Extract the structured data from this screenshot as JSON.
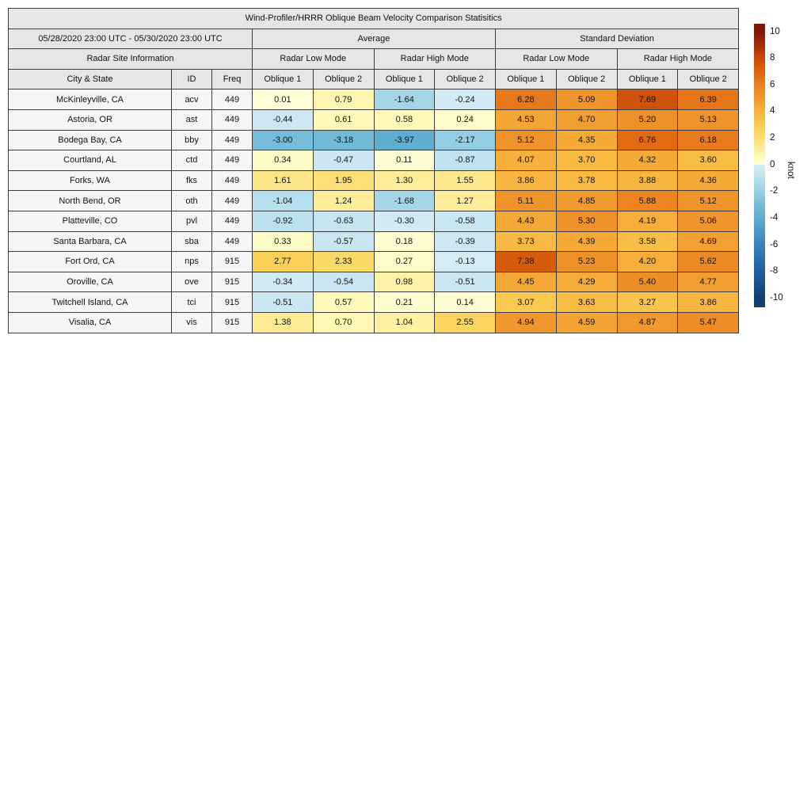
{
  "title": "Wind-Profiler/HRRR Oblique Beam Velocity Comparison Statisitics",
  "header": {
    "date_range": "05/28/2020 23:00 UTC - 05/30/2020 23:00 UTC",
    "group_average": "Average",
    "group_std": "Standard Deviation",
    "site_info": "Radar Site Information",
    "low_mode": "Radar Low Mode",
    "high_mode": "Radar High Mode",
    "col_city": "City & State",
    "col_id": "ID",
    "col_freq": "Freq",
    "oblique1": "Oblique 1",
    "oblique2": "Oblique 2"
  },
  "colorbar": {
    "label": "knot",
    "ticks": [
      10,
      8,
      6,
      4,
      2,
      0,
      -2,
      -4,
      -6,
      -8,
      -10
    ],
    "vmin": -10,
    "vmax": 10,
    "negative_stops": [
      [
        -10,
        "#153E6E"
      ],
      [
        -8,
        "#2060A6"
      ],
      [
        -6,
        "#3484BB"
      ],
      [
        -4,
        "#5EADCF"
      ],
      [
        -3,
        "#74BCD9"
      ],
      [
        -2,
        "#9AD1E5"
      ],
      [
        -1,
        "#B9E0EE"
      ],
      [
        -0.5,
        "#CBE7F2"
      ],
      [
        0,
        "#DAEEF6"
      ]
    ],
    "positive_stops": [
      [
        0,
        "#FFFED8"
      ],
      [
        0.5,
        "#FFFABE"
      ],
      [
        1,
        "#FEF2A6"
      ],
      [
        1.5,
        "#FDE88F"
      ],
      [
        2,
        "#FCDE74"
      ],
      [
        2.5,
        "#FBD660"
      ],
      [
        3,
        "#FBCB52"
      ],
      [
        3.5,
        "#F9C047"
      ],
      [
        4,
        "#F7B23D"
      ],
      [
        4.5,
        "#F4A634"
      ],
      [
        5,
        "#F0952C"
      ],
      [
        5.5,
        "#EE8C25"
      ],
      [
        6,
        "#EA8120"
      ],
      [
        6.5,
        "#E57117"
      ],
      [
        7,
        "#DE6410"
      ],
      [
        7.5,
        "#D4590B"
      ],
      [
        8,
        "#C84908"
      ],
      [
        9,
        "#A62D06"
      ],
      [
        10,
        "#7F1708"
      ]
    ]
  },
  "chart_data": {
    "type": "heatmap",
    "title": "Wind-Profiler/HRRR Oblique Beam Velocity Comparison Statisitics",
    "unit": "knot",
    "color_scale": {
      "min": -10,
      "max": 10,
      "label": "knot"
    },
    "column_groups": [
      "Average",
      "Standard Deviation"
    ],
    "columns": [
      "avg_low_oblique1",
      "avg_low_oblique2",
      "avg_high_oblique1",
      "avg_high_oblique2",
      "std_low_oblique1",
      "std_low_oblique2",
      "std_high_oblique1",
      "std_high_oblique2"
    ],
    "rows": [
      {
        "city": "McKinleyville, CA",
        "id": "acv",
        "freq": "449",
        "avg": [
          "0.01",
          "0.79",
          "-1.64",
          "-0.24"
        ],
        "std": [
          "6.28",
          "5.09",
          "7.69",
          "6.39"
        ]
      },
      {
        "city": "Astoria, OR",
        "id": "ast",
        "freq": "449",
        "avg": [
          "-0.44",
          "0.61",
          "0.58",
          "0.24"
        ],
        "std": [
          "4.53",
          "4.70",
          "5.20",
          "5.13"
        ]
      },
      {
        "city": "Bodega Bay, CA",
        "id": "bby",
        "freq": "449",
        "avg": [
          "-3.00",
          "-3.18",
          "-3.97",
          "-2.17"
        ],
        "std": [
          "5.12",
          "4.35",
          "6.76",
          "6.18"
        ]
      },
      {
        "city": "Courtland, AL",
        "id": "ctd",
        "freq": "449",
        "avg": [
          "0.34",
          "-0.47",
          "0.11",
          "-0.87"
        ],
        "std": [
          "4.07",
          "3.70",
          "4.32",
          "3.60"
        ]
      },
      {
        "city": "Forks, WA",
        "id": "fks",
        "freq": "449",
        "avg": [
          "1.61",
          "1.95",
          "1.30",
          "1.55"
        ],
        "std": [
          "3.86",
          "3.78",
          "3.88",
          "4.36"
        ]
      },
      {
        "city": "North Bend, OR",
        "id": "oth",
        "freq": "449",
        "avg": [
          "-1.04",
          "1.24",
          "-1.68",
          "1.27"
        ],
        "std": [
          "5.11",
          "4.85",
          "5.88",
          "5.12"
        ]
      },
      {
        "city": "Platteville, CO",
        "id": "pvl",
        "freq": "449",
        "avg": [
          "-0.92",
          "-0.63",
          "-0.30",
          "-0.58"
        ],
        "std": [
          "4.43",
          "5.30",
          "4.19",
          "5.06"
        ]
      },
      {
        "city": "Santa Barbara, CA",
        "id": "sba",
        "freq": "449",
        "avg": [
          "0.33",
          "-0.57",
          "0.18",
          "-0.39"
        ],
        "std": [
          "3.73",
          "4.39",
          "3.58",
          "4.69"
        ]
      },
      {
        "city": "Fort Ord, CA",
        "id": "nps",
        "freq": "915",
        "avg": [
          "2.77",
          "2.33",
          "0.27",
          "-0.13"
        ],
        "std": [
          "7.38",
          "5.23",
          "4.20",
          "5.62"
        ]
      },
      {
        "city": "Oroville, CA",
        "id": "ove",
        "freq": "915",
        "avg": [
          "-0.34",
          "-0.54",
          "0.98",
          "-0.51"
        ],
        "std": [
          "4.45",
          "4.29",
          "5.40",
          "4.77"
        ]
      },
      {
        "city": "Twitchell Island, CA",
        "id": "tci",
        "freq": "915",
        "avg": [
          "-0.51",
          "0.57",
          "0.21",
          "0.14"
        ],
        "std": [
          "3.07",
          "3.63",
          "3.27",
          "3.86"
        ]
      },
      {
        "city": "Visalia, CA",
        "id": "vis",
        "freq": "915",
        "avg": [
          "1.38",
          "0.70",
          "1.04",
          "2.55"
        ],
        "std": [
          "4.94",
          "4.59",
          "4.87",
          "5.47"
        ]
      }
    ]
  }
}
